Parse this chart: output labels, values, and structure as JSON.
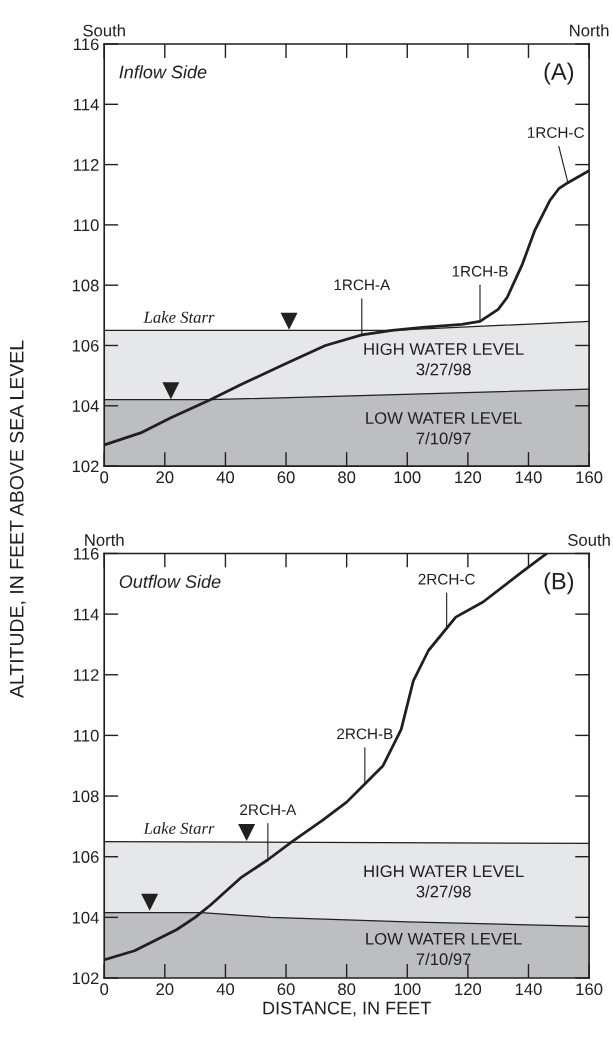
{
  "chart_data": [
    {
      "type": "line",
      "ylabel": "ALTITUDE, IN FEET ABOVE SEA LEVEL",
      "xlim": [
        0,
        160
      ],
      "ylim": [
        102,
        116
      ],
      "xticks": [
        0,
        20,
        40,
        60,
        80,
        100,
        120,
        140,
        160
      ],
      "yticks": [
        102,
        104,
        106,
        108,
        110,
        112,
        114,
        116
      ],
      "grid": false,
      "annotations": [
        "South",
        "North",
        "Inflow Side",
        "(A)",
        {
          "text": "Lake Starr",
          "x": 13,
          "y": 106.5
        },
        {
          "text": "1RCH-A",
          "x": 85,
          "y": 106.35
        },
        {
          "text": "1RCH-B",
          "x": 124,
          "y": 106.8
        },
        {
          "text": "1RCH-C",
          "x": 153,
          "y": 111.4
        }
      ],
      "series": [
        {
          "name": "HIGH WATER LEVEL\n3/27/98",
          "type": "area",
          "color": "#e6e7e8",
          "x": [
            0,
            95,
            160
          ],
          "values": [
            106.5,
            106.5,
            106.8
          ]
        },
        {
          "name": "LOW WATER LEVEL\n7/10/97",
          "type": "area",
          "color": "#bcbec0",
          "x": [
            0,
            35,
            160
          ],
          "values": [
            104.2,
            104.2,
            104.55
          ]
        },
        {
          "type": "scatter",
          "marker": "triangle",
          "color": "#231f20",
          "x": [
            22,
            61
          ],
          "values": [
            104.5,
            106.8
          ]
        },
        {
          "color": "#231f20",
          "x": [
            0,
            12,
            22,
            35,
            45,
            60,
            73,
            85,
            95,
            105,
            118,
            124,
            130,
            133,
            138,
            142,
            147,
            150,
            153,
            160
          ],
          "values": [
            102.7,
            103.1,
            103.6,
            104.2,
            104.7,
            105.4,
            106.0,
            106.35,
            106.5,
            106.6,
            106.7,
            106.8,
            107.2,
            107.6,
            108.7,
            109.8,
            110.8,
            111.2,
            111.4,
            111.8
          ]
        }
      ]
    },
    {
      "type": "line",
      "xlabel": "DISTANCE, IN FEET",
      "xlim": [
        0,
        160
      ],
      "ylim": [
        102,
        116
      ],
      "xticks": [
        0,
        20,
        40,
        60,
        80,
        100,
        120,
        140,
        160
      ],
      "yticks": [
        102,
        104,
        106,
        108,
        110,
        112,
        114,
        116
      ],
      "grid": false,
      "annotations": [
        "North",
        "South",
        "Outflow Side",
        "(B)",
        {
          "text": "Lake Starr",
          "x": 13,
          "y": 106.5
        },
        {
          "text": "2RCH-A",
          "x": 54,
          "y": 105.9
        },
        {
          "text": "2RCH-B",
          "x": 86,
          "y": 108.4
        },
        {
          "text": "2RCH-C",
          "x": 113,
          "y": 113.5
        }
      ],
      "series": [
        {
          "name": "HIGH WATER LEVEL\n3/27/98",
          "type": "area",
          "color": "#e6e7e8",
          "x": [
            0,
            160
          ],
          "values": [
            106.5,
            106.44
          ]
        },
        {
          "name": "LOW WATER LEVEL\n7/10/97",
          "type": "area",
          "color": "#bcbec0",
          "x": [
            0,
            32,
            55,
            100,
            160
          ],
          "values": [
            104.16,
            104.16,
            104.0,
            103.85,
            103.7
          ]
        },
        {
          "type": "scatter",
          "marker": "triangle",
          "color": "#231f20",
          "x": [
            15,
            47
          ],
          "values": [
            104.5,
            106.8
          ]
        },
        {
          "color": "#231f20",
          "x": [
            0,
            10,
            24,
            30,
            35,
            45,
            54,
            62,
            72,
            80,
            86,
            92,
            98,
            102,
            107,
            116,
            125,
            138,
            146
          ],
          "values": [
            102.6,
            102.9,
            103.6,
            104.0,
            104.4,
            105.3,
            105.9,
            106.5,
            107.2,
            107.8,
            108.4,
            109.0,
            110.2,
            111.8,
            112.8,
            113.9,
            114.4,
            115.4,
            116.0
          ]
        }
      ]
    }
  ]
}
